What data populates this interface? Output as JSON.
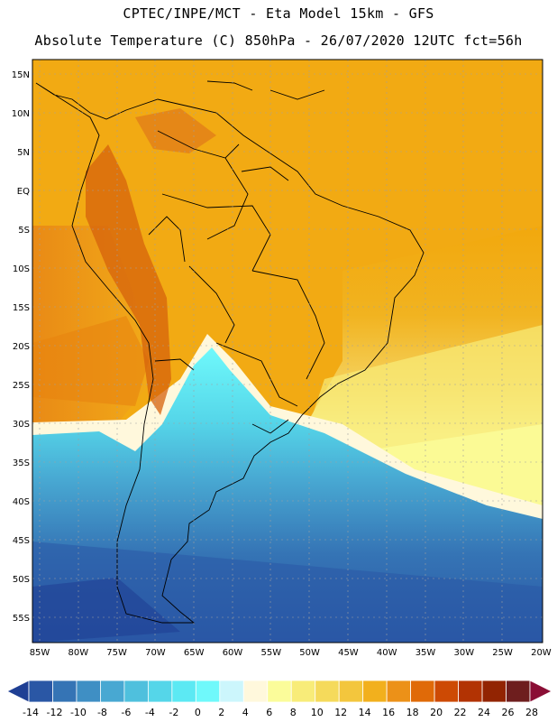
{
  "header": {
    "line1": "CPTEC/INPE/MCT -  Eta Model 15km - GFS",
    "line2": "Absolute Temperature (C) 850hPa - 26/07/2020 12UTC fct=56h"
  },
  "map": {
    "latitude_labels": [
      "15N",
      "10N",
      "5N",
      "EQ",
      "5S",
      "10S",
      "15S",
      "20S",
      "25S",
      "30S",
      "35S",
      "40S",
      "45S",
      "50S",
      "55S"
    ],
    "longitude_labels": [
      "85W",
      "80W",
      "75W",
      "70W",
      "65W",
      "60W",
      "55W",
      "50W",
      "45W",
      "40W",
      "35W",
      "30W",
      "25W",
      "20W"
    ]
  },
  "legend": {
    "colors": [
      "#1f3f94",
      "#2a57a5",
      "#3574b5",
      "#3f8fc4",
      "#48a8d2",
      "#4fc0dd",
      "#55d6e9",
      "#5ce9f3",
      "#6ff9fb",
      "#ccf6fc",
      "#fff8dc",
      "#fbfc9a",
      "#f8ec79",
      "#f5da5b",
      "#f3c63d",
      "#f2b01d",
      "#ec9118",
      "#e06a08",
      "#cd4a04",
      "#b23303",
      "#922402",
      "#6e1e1e",
      "#8a0e35"
    ],
    "tick_labels": [
      "-14",
      "-12",
      "-10",
      "-8",
      "-6",
      "-4",
      "-2",
      "0",
      "2",
      "4",
      "6",
      "8",
      "10",
      "12",
      "14",
      "16",
      "18",
      "20",
      "22",
      "24",
      "26",
      "28"
    ]
  }
}
